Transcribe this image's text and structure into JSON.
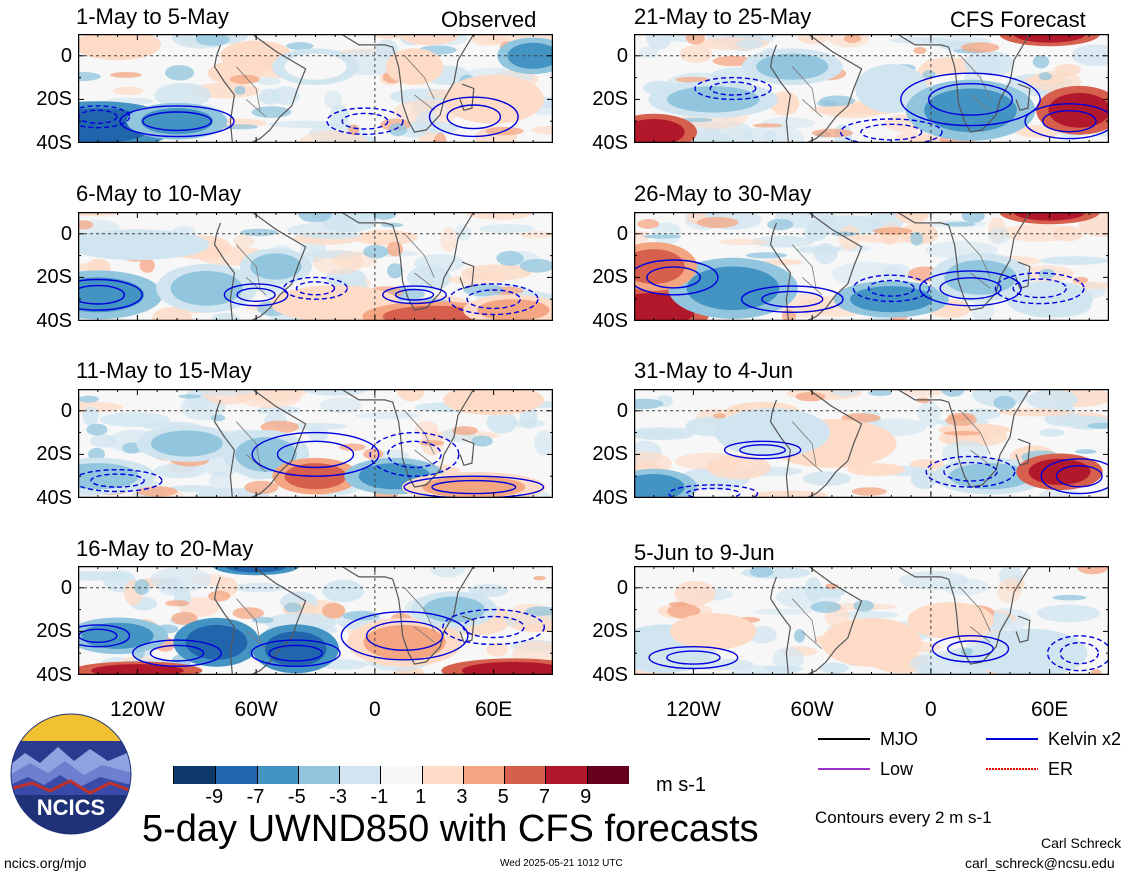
{
  "chart_data": {
    "type": "heatmap",
    "title": "5-day UWND850 with CFS forecasts",
    "units": "m s-1",
    "contour_note": "Contours every 2 m s-1",
    "labels": {
      "observed": "Observed",
      "forecast": "CFS Forecast"
    },
    "panels": [
      {
        "title": "1-May to 5-May",
        "column": "observed",
        "row": 0
      },
      {
        "title": "6-May to 10-May",
        "column": "observed",
        "row": 1
      },
      {
        "title": "11-May to 15-May",
        "column": "observed",
        "row": 2
      },
      {
        "title": "16-May to 20-May",
        "column": "observed",
        "row": 3
      },
      {
        "title": "21-May to 25-May",
        "column": "forecast",
        "row": 0
      },
      {
        "title": "26-May to 30-May",
        "column": "forecast",
        "row": 1
      },
      {
        "title": "31-May to 4-Jun",
        "column": "forecast",
        "row": 2
      },
      {
        "title": "5-Jun to 9-Jun",
        "column": "forecast",
        "row": 3
      }
    ],
    "yticks": [
      "0",
      "20S",
      "40S"
    ],
    "xticks": [
      "120W",
      "60W",
      "0",
      "60E"
    ],
    "colorbar": {
      "ticks": [
        "-9",
        "-7",
        "-5",
        "-3",
        "-1",
        "1",
        "3",
        "5",
        "7",
        "9"
      ],
      "colors": [
        "#0d3a6b",
        "#2166ac",
        "#4393c3",
        "#92c5de",
        "#d1e5f0",
        "#f7f7f7",
        "#fddbc7",
        "#f4a582",
        "#d6604d",
        "#b2182b",
        "#67001f"
      ]
    },
    "legend": [
      {
        "label": "MJO",
        "color": "#000000",
        "style": "solid"
      },
      {
        "label": "Kelvin x2",
        "color": "#0000dd",
        "style": "solid"
      },
      {
        "label": "Low",
        "color": "#9933cc",
        "style": "solid"
      },
      {
        "label": "ER",
        "color": "#ee0000",
        "style": "dotted"
      }
    ]
  },
  "branding": {
    "logo_text": "NCICS",
    "site": "ncics.org/mjo",
    "timestamp": "Wed 2025-05-21 1012 UTC",
    "author": "Carl Schreck",
    "email": "carl_schreck@ncsu.edu"
  }
}
